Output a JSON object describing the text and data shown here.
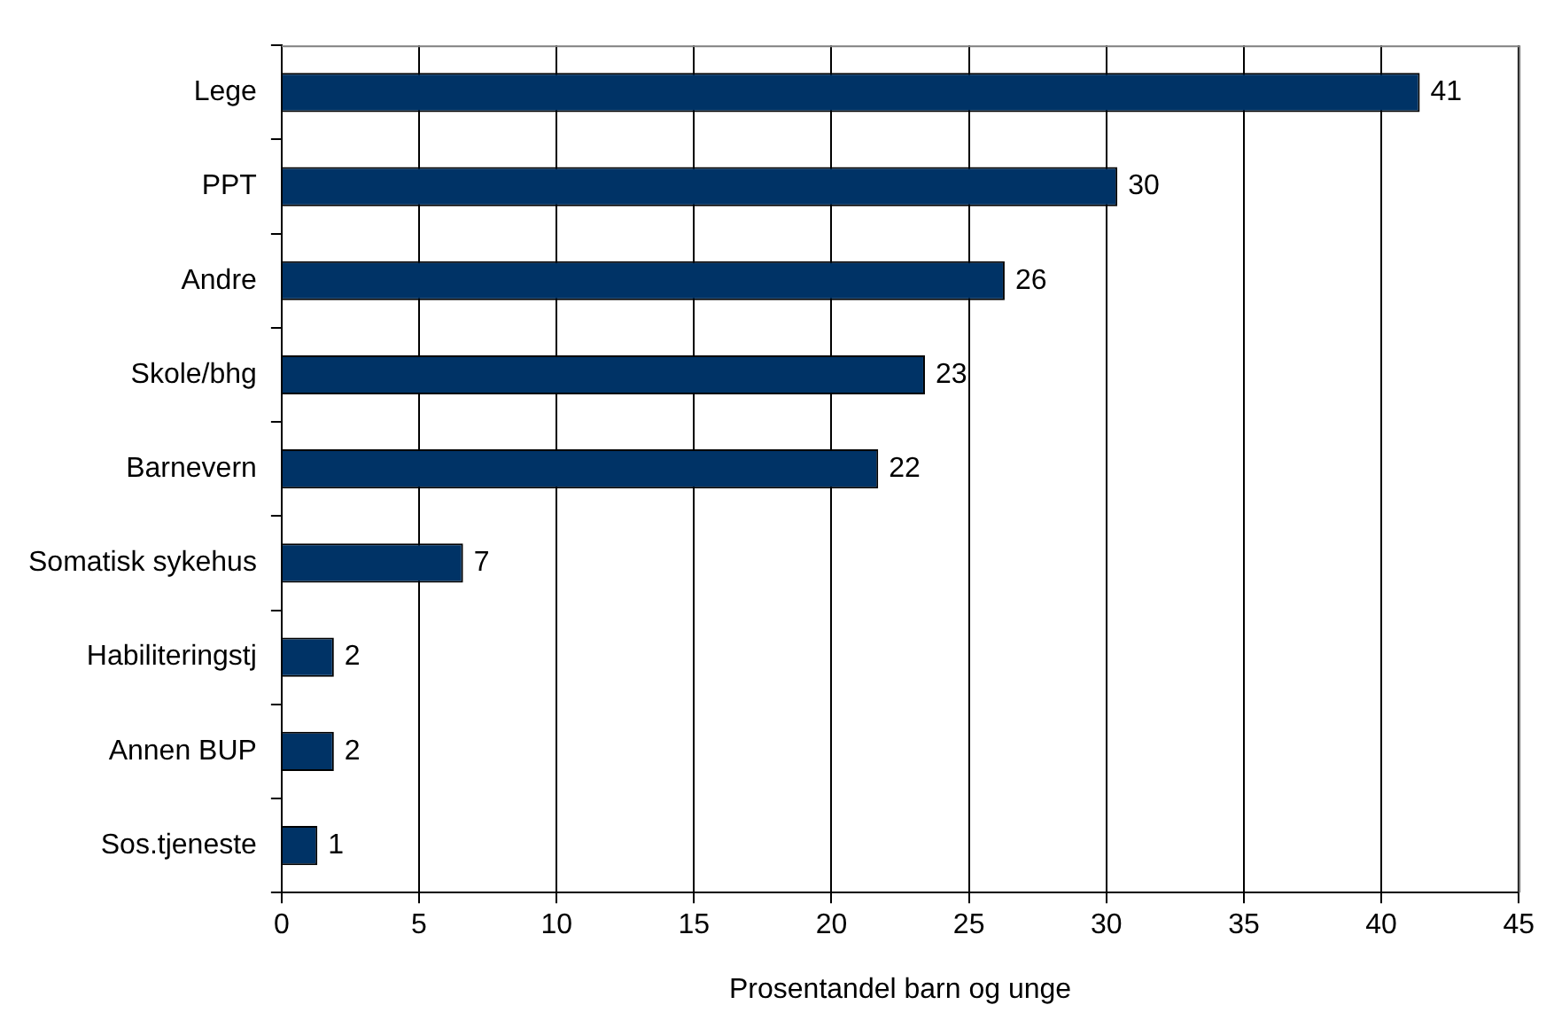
{
  "chart_data": {
    "type": "bar",
    "orientation": "horizontal",
    "xlabel": "Prosentandel barn og unge",
    "categories": [
      "Lege",
      "PPT",
      "Andre",
      "Skole/bhg",
      "Barnevern",
      "Somatisk sykehus",
      "Habiliteringstj",
      "Annen BUP",
      "Sos.tjeneste"
    ],
    "values": [
      41.4,
      30.4,
      26.3,
      23.4,
      21.7,
      6.6,
      1.9,
      1.9,
      1.3
    ],
    "value_labels": [
      "41",
      "30",
      "26",
      "23",
      "22",
      "7",
      "2",
      "2",
      "1"
    ],
    "color": "#003366",
    "xlim": [
      0,
      45
    ],
    "xticks": [
      0,
      5,
      10,
      15,
      20,
      25,
      30,
      35,
      40,
      45
    ],
    "grid": "x"
  }
}
